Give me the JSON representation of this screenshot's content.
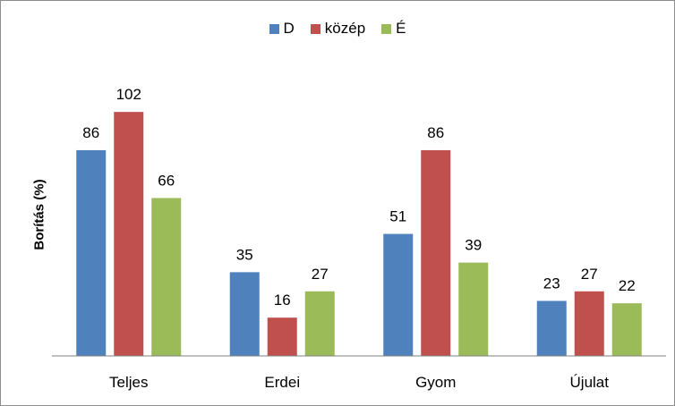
{
  "chart_data": {
    "type": "bar",
    "title": "",
    "xlabel": "",
    "ylabel": "Borítás (%)",
    "categories": [
      "Teljes",
      "Erdei",
      "Gyom",
      "Újulat"
    ],
    "series": [
      {
        "name": "D",
        "values": [
          86,
          35,
          51,
          23
        ],
        "color": "#4f81bd"
      },
      {
        "name": "közép",
        "values": [
          102,
          16,
          86,
          27
        ],
        "color": "#c0504d"
      },
      {
        "name": "É",
        "values": [
          66,
          27,
          39,
          22
        ],
        "color": "#9bbb59"
      }
    ],
    "ylim": [
      0,
      120
    ],
    "grid": false,
    "legend": "top"
  }
}
